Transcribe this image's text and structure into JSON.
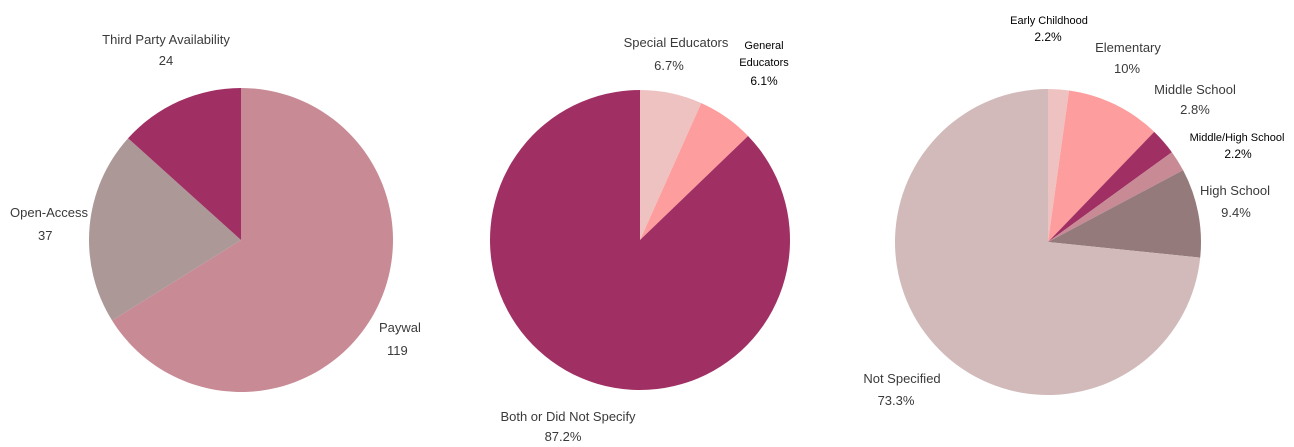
{
  "chart_data": [
    {
      "type": "pie",
      "title": "",
      "slices": [
        {
          "label": "Paywal",
          "value": 119,
          "display": "119",
          "color": "#c88a95"
        },
        {
          "label": "Open-Access",
          "value": 37,
          "display": "37",
          "color": "#ad9898"
        },
        {
          "label": "Third Party Availability",
          "value": 24,
          "display": "24",
          "color": "#a03064"
        }
      ]
    },
    {
      "type": "pie",
      "title": "",
      "slices": [
        {
          "label": "Special Educators",
          "value": 6.7,
          "display": "6.7%",
          "color": "#efc2c2"
        },
        {
          "label": "General Educators",
          "label_lines": [
            "General",
            "Educators"
          ],
          "value": 6.1,
          "display": "6.1%",
          "color": "#fd9d9d"
        },
        {
          "label": "Both or Did Not Specify",
          "value": 87.2,
          "display": "87.2%",
          "color": "#a03064"
        }
      ]
    },
    {
      "type": "pie",
      "title": "",
      "slices": [
        {
          "label": "Early Childhood",
          "value": 2.2,
          "display": "2.2%",
          "color": "#efc2c2"
        },
        {
          "label": "Elementary",
          "value": 10,
          "display": "10%",
          "color": "#fd9d9d"
        },
        {
          "label": "Middle School",
          "value": 2.8,
          "display": "2.8%",
          "color": "#a03064"
        },
        {
          "label": "Middle/High School",
          "value": 2.2,
          "display": "2.2%",
          "color": "#c88a95"
        },
        {
          "label": "High School",
          "value": 9.4,
          "display": "9.4%",
          "color": "#957a7c"
        },
        {
          "label": "Not Specified",
          "value": 73.3,
          "display": "73.3%",
          "color": "#d2baba"
        }
      ]
    }
  ]
}
